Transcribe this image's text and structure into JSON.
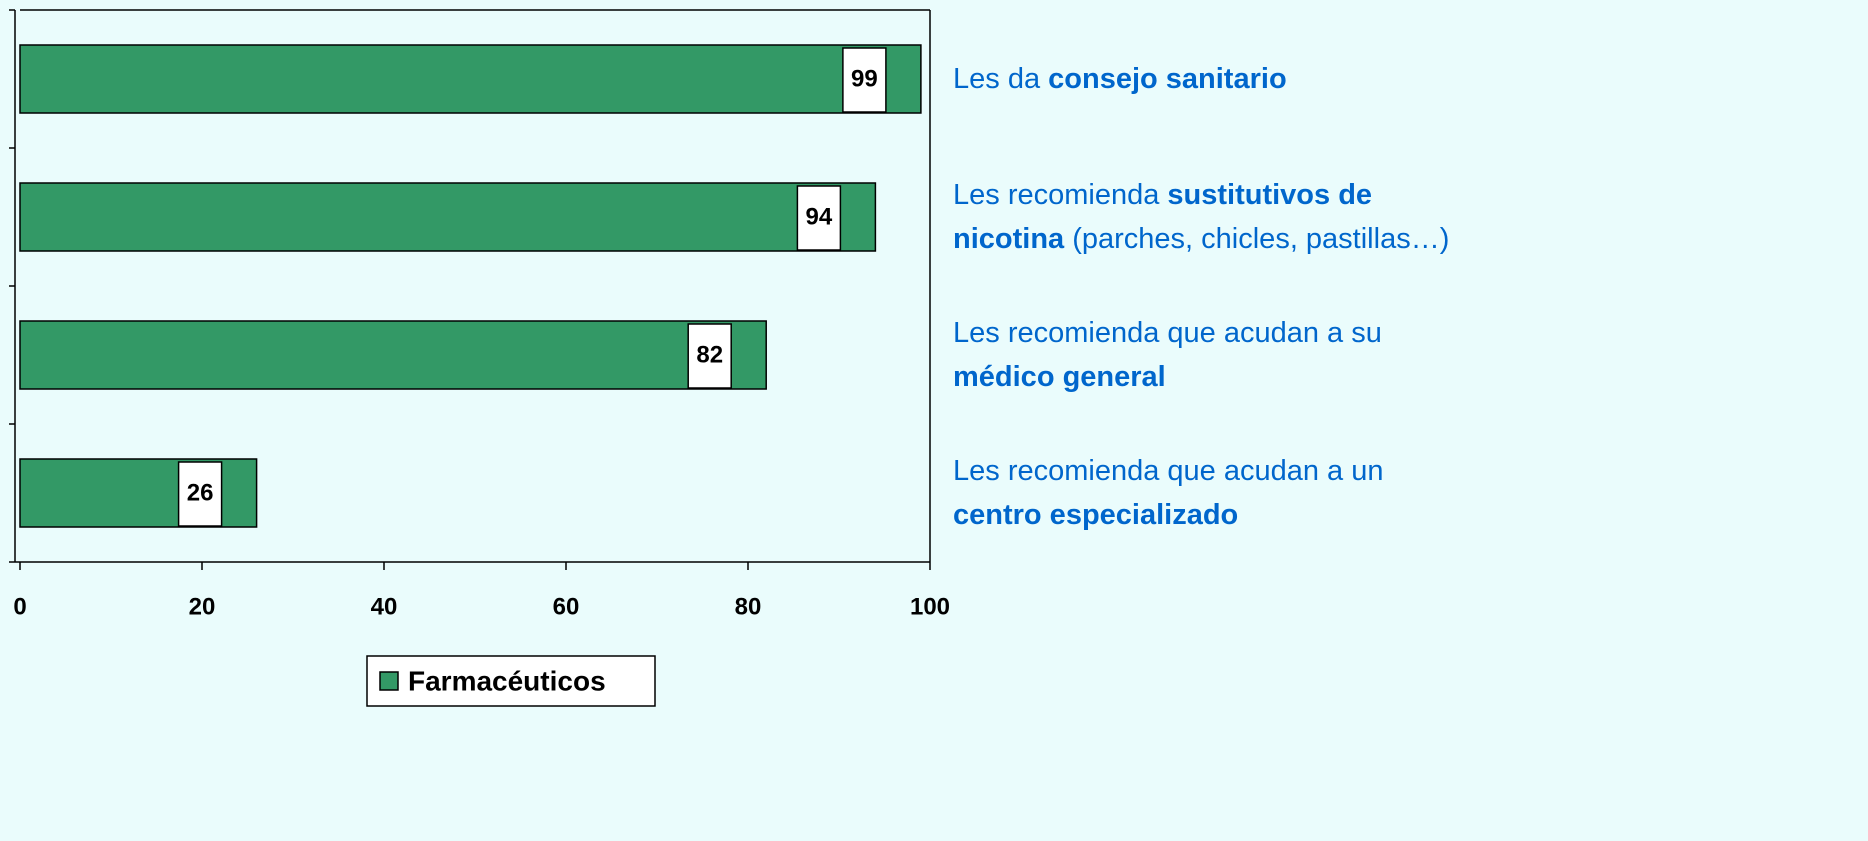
{
  "chart_data": {
    "type": "bar",
    "orientation": "horizontal",
    "categories": [
      [
        [
          {
            "text": "Les da "
          },
          {
            "text": "consejo sanitario",
            "bold": true
          }
        ]
      ],
      [
        [
          {
            "text": "Les recomienda "
          },
          {
            "text": "sustitutivos de",
            "bold": true
          }
        ],
        [
          {
            "text": "nicotina",
            "bold": true
          },
          {
            "text": " (parches, chicles, pastillas…)"
          }
        ]
      ],
      [
        [
          {
            "text": "Les recomienda que acudan a su"
          }
        ],
        [
          {
            "text": "médico general",
            "bold": true
          }
        ]
      ],
      [
        [
          {
            "text": "Les recomienda que acudan a un"
          }
        ],
        [
          {
            "text": "centro especializado",
            "bold": true
          }
        ]
      ]
    ],
    "series": [
      {
        "name": "Farmacéuticos",
        "color": "#339966",
        "values": [
          99,
          94,
          82,
          26
        ]
      }
    ],
    "xlim": [
      0,
      100
    ],
    "xticks": [
      0,
      20,
      40,
      60,
      80,
      100
    ],
    "label_color": "#0066cc",
    "legend": "bottom"
  }
}
